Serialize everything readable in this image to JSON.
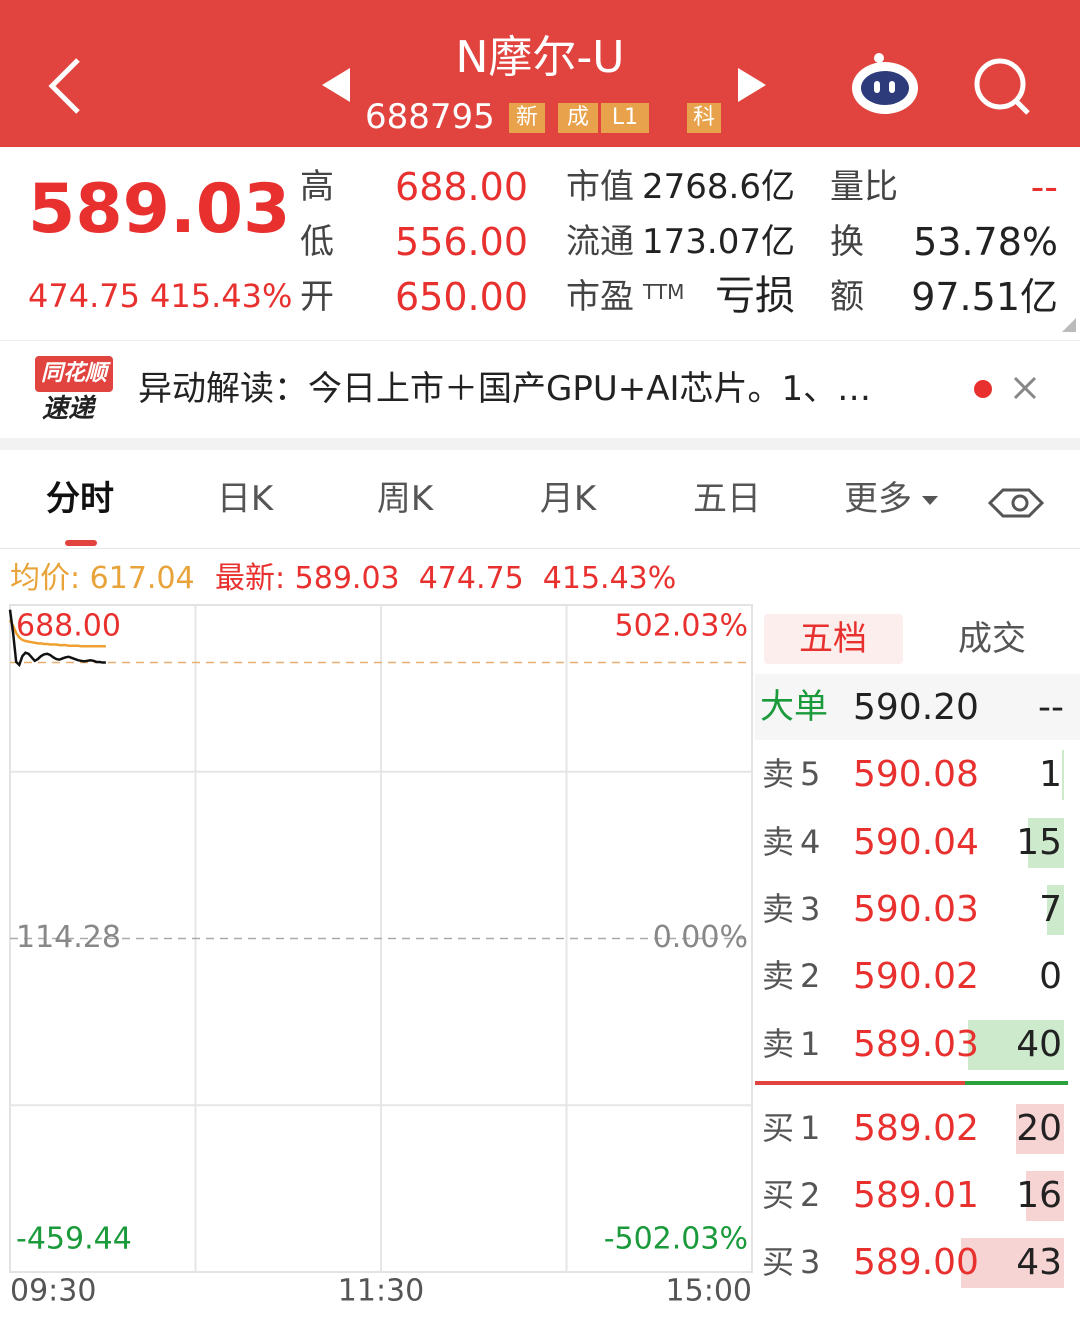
{
  "header": {
    "title": "N摩尔-U",
    "code": "688795",
    "tags": [
      "新",
      "成",
      "L1",
      "科"
    ]
  },
  "quote": {
    "price": "589.03",
    "change": "474.75",
    "change_pct": "415.43%",
    "stats": [
      {
        "label": "高",
        "value": "688.00"
      },
      {
        "label": "低",
        "value": "556.00"
      },
      {
        "label": "开",
        "value": "650.00"
      }
    ],
    "metrics": [
      {
        "label": "市值",
        "value": "2768.6亿"
      },
      {
        "label": "流通",
        "value": "173.07亿"
      },
      {
        "label": "市盈",
        "sup": "TTM",
        "value": "亏损"
      }
    ],
    "extra": [
      {
        "label": "量比",
        "value": "--"
      },
      {
        "label": "换",
        "value": "53.78%"
      },
      {
        "label": "额",
        "value": "97.51亿"
      }
    ]
  },
  "news": {
    "brand": [
      "同花顺",
      "速递"
    ],
    "text": "异动解读：今日上市＋国产GPU+AI芯片。1、…"
  },
  "tabs": [
    "分时",
    "日K",
    "周K",
    "月K",
    "五日",
    "更多"
  ],
  "summary": {
    "avg_label": "均价:",
    "avg": "617.04",
    "latest_label": "最新:",
    "latest": "589.03",
    "change": "474.75",
    "change_pct": "415.43%"
  },
  "chart_data": {
    "type": "line",
    "xlim": [
      0,
      240
    ],
    "ylim": [
      -459.44,
      688
    ],
    "yticks": [
      {
        "value": 688,
        "label": "688.00"
      },
      {
        "value": 114.28,
        "label": "114.28"
      },
      {
        "value": -459.44,
        "label": "-459.44"
      }
    ],
    "y2lim": [
      -502.03,
      502.03
    ],
    "y2ticks": [
      {
        "value": 502.03,
        "label": "502.03%"
      },
      {
        "value": 0,
        "label": "0.00%"
      },
      {
        "value": -502.03,
        "label": "-502.03%"
      }
    ],
    "time_labels": [
      "09:30",
      "11:30",
      "15:00"
    ],
    "series": [
      {
        "color": "#111111",
        "values": [
          680,
          640,
          590,
          585,
          600,
          606,
          604,
          598,
          592,
          595,
          600,
          603,
          604,
          602,
          598,
          595,
          594,
          596,
          598,
          599,
          597,
          595,
          593,
          592,
          591,
          592,
          593,
          592,
          590,
          590,
          589,
          589.03
        ]
      },
      {
        "color": "#f0a030",
        "values": [
          662,
          652,
          640,
          632,
          628,
          626,
          625,
          624,
          623,
          622,
          622,
          621,
          621,
          620,
          620,
          620,
          619,
          619,
          619,
          618,
          618,
          618,
          618,
          617,
          617,
          617,
          617,
          617,
          617,
          617,
          617,
          617.04
        ]
      }
    ]
  },
  "order_book": {
    "tabs": [
      "五档",
      "成交"
    ],
    "big": {
      "label": "大单",
      "price": "590.20",
      "volume": "--"
    },
    "asks": [
      {
        "label": "卖5",
        "price": "590.08",
        "volume": 1
      },
      {
        "label": "卖4",
        "price": "590.04",
        "volume": 15
      },
      {
        "label": "卖3",
        "price": "590.03",
        "volume": 7
      },
      {
        "label": "卖2",
        "price": "590.02",
        "volume": 0
      },
      {
        "label": "卖1",
        "price": "589.03",
        "volume": 40
      }
    ],
    "bids": [
      {
        "label": "买1",
        "price": "589.02",
        "volume": 20
      },
      {
        "label": "买2",
        "price": "589.01",
        "volume": 16
      },
      {
        "label": "买3",
        "price": "589.00",
        "volume": 43
      }
    ]
  }
}
